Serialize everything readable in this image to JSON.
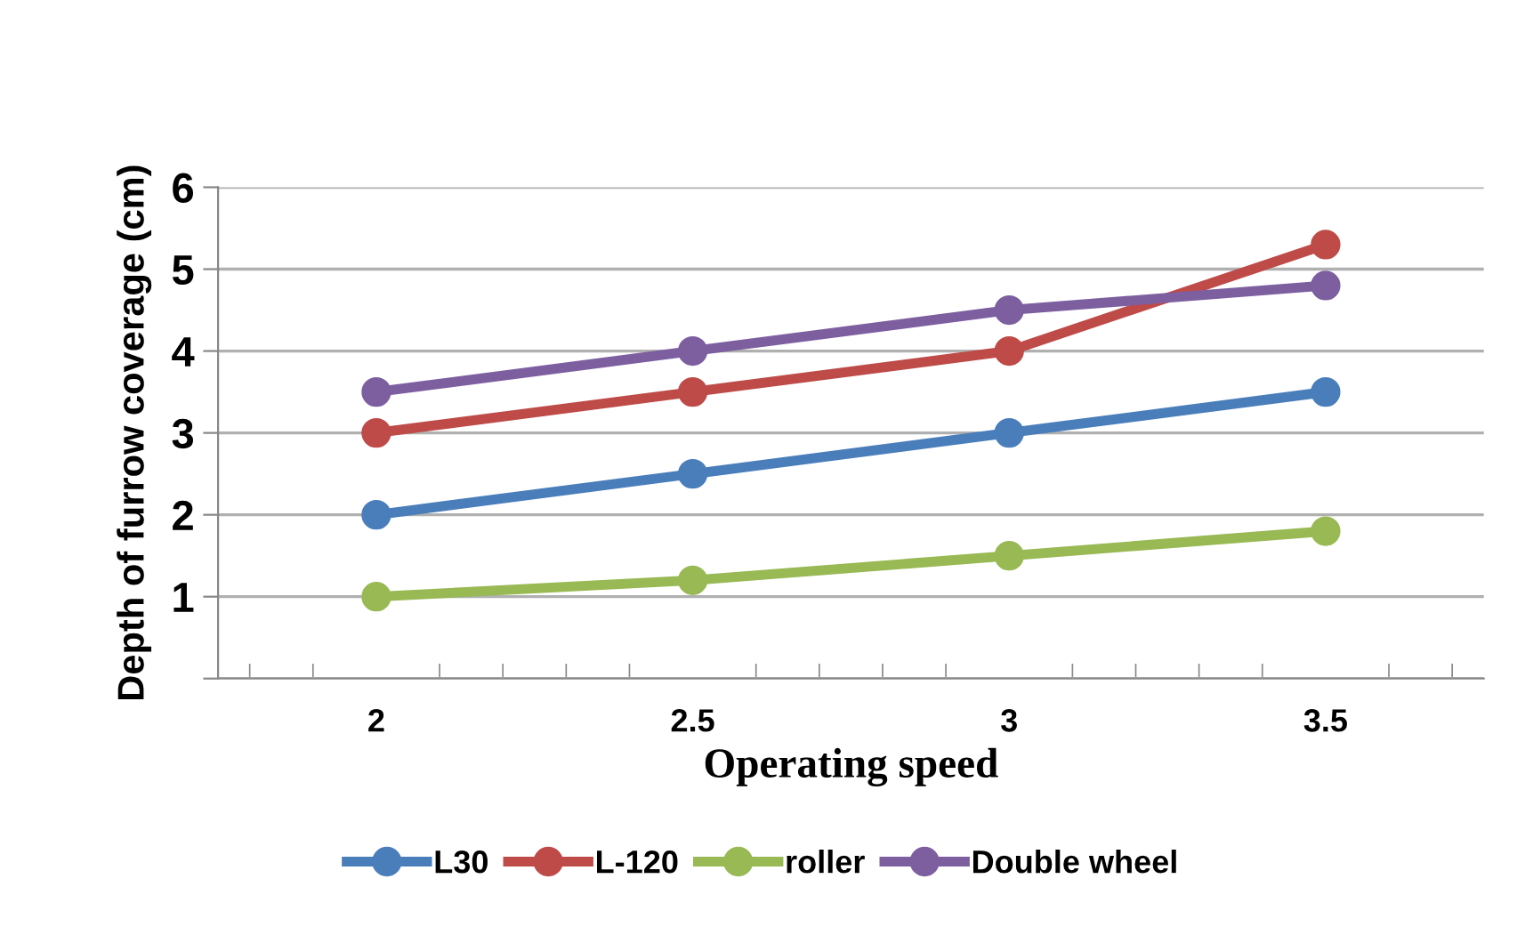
{
  "chart_data": {
    "type": "line",
    "xlabel": "Operating speed",
    "ylabel": "Depth of furrow coverage (cm)",
    "categories": [
      "2",
      "2.5",
      "3",
      "3.5"
    ],
    "series": [
      {
        "name": "L30",
        "color": "#4a7ebb",
        "values": [
          2,
          2.5,
          3,
          3.5
        ]
      },
      {
        "name": "L-120",
        "color": "#be4b48",
        "values": [
          3,
          3.5,
          4,
          5.3
        ]
      },
      {
        "name": "roller",
        "color": "#98b954",
        "values": [
          1,
          1.2,
          1.5,
          1.8
        ]
      },
      {
        "name": "Double wheel",
        "color": "#7d5fa0",
        "values": [
          3.5,
          4,
          4.5,
          4.8
        ]
      }
    ],
    "ylim": [
      0,
      6
    ],
    "yticks": [
      {
        "value": 0,
        "label": null
      },
      1,
      2,
      3,
      4,
      5,
      6
    ],
    "grid": "y",
    "legend": "bottom",
    "marker": "circle",
    "line_style": "solid"
  }
}
